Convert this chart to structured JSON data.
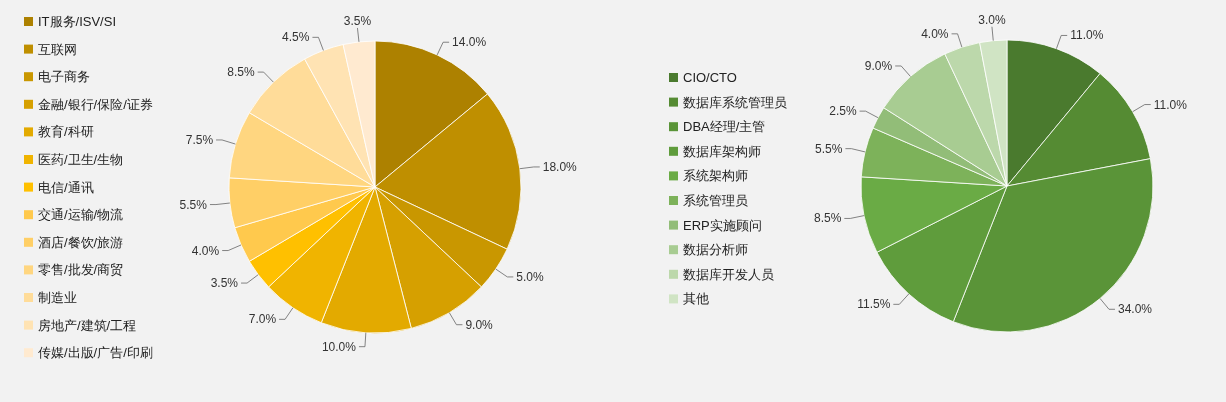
{
  "chart_data": [
    {
      "type": "pie",
      "legend": "left",
      "categories": [
        "IT服务/ISV/SI",
        "互联网",
        "电子商务",
        "金融/银行/保险/证券",
        "教育/科研",
        "医药/卫生/生物",
        "电信/通讯",
        "交通/运输/物流",
        "酒店/餐饮/旅游",
        "零售/批发/商贸",
        "制造业",
        "房地产/建筑/工程",
        "传媒/出版/广告/印刷"
      ],
      "values": [
        14.0,
        18.0,
        5.0,
        9.0,
        10.0,
        7.0,
        3.5,
        4.0,
        5.5,
        7.5,
        8.5,
        4.5,
        3.5
      ],
      "value_labels": [
        "14.0%",
        "18.0%",
        "5.0%",
        "9.0%",
        "10.0%",
        "7.0%",
        "3.5%",
        "4.0%",
        "5.5%",
        "7.5%",
        "8.5%",
        "4.5%",
        "3.5%"
      ],
      "colors": [
        "#ad8100",
        "#bf8f00",
        "#c99700",
        "#d6a000",
        "#e3aa00",
        "#f0b400",
        "#ffc000",
        "#ffc94d",
        "#ffcf66",
        "#ffd680",
        "#ffdc99",
        "#ffe3b3",
        "#ffead0"
      ]
    },
    {
      "type": "pie",
      "legend": "left",
      "categories": [
        "CIO/CTO",
        "数据库系统管理员",
        "DBA经理/主管",
        "数据库架构师",
        "系统架构师",
        "系统管理员",
        "ERP实施顾问",
        "数据分析师",
        "数据库开发人员",
        "其他"
      ],
      "values": [
        11.0,
        11.0,
        34.0,
        11.5,
        8.5,
        5.5,
        2.5,
        9.0,
        4.0,
        3.0
      ],
      "value_labels": [
        "11.0%",
        "11.0%",
        "34.0%",
        "11.5%",
        "8.5%",
        "5.5%",
        "2.5%",
        "9.0%",
        "4.0%",
        "3.0%"
      ],
      "colors": [
        "#4a7a2e",
        "#558b33",
        "#5a9438",
        "#5f9c3c",
        "#6aab45",
        "#7db25a",
        "#92bd78",
        "#a8cc92",
        "#bcd8ab",
        "#d0e4c4"
      ]
    }
  ]
}
